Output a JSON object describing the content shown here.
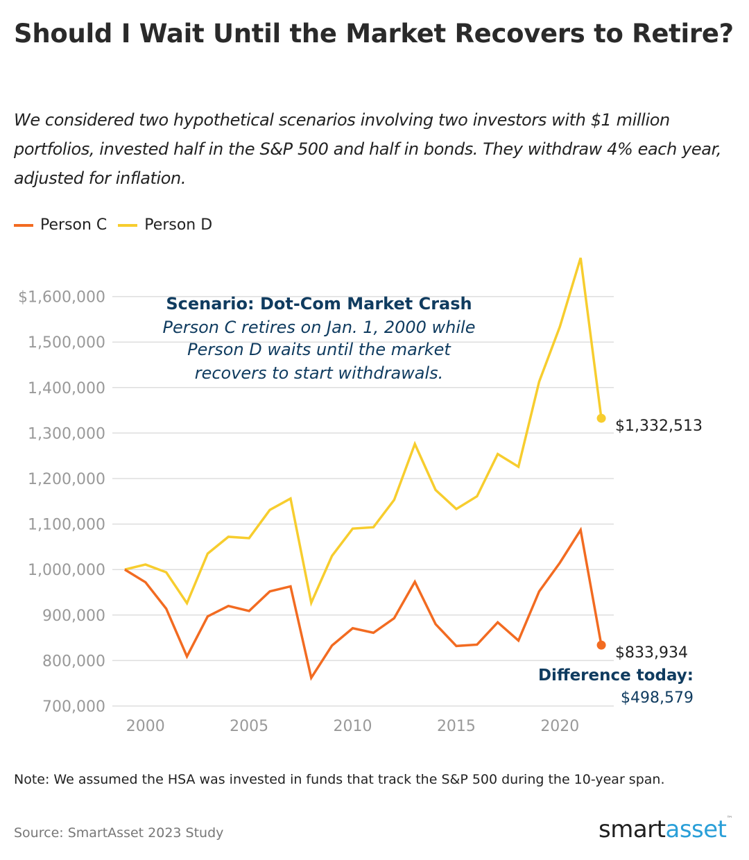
{
  "title": "Should I Wait Until the Market Recovers to Retire?",
  "subtitle": "We considered two hypothetical scenarios involving two investors with $1 million portfolios, invested half in the S&P 500 and half in bonds. They withdraw 4% each year, adjusted for inflation.",
  "colors": {
    "person_c": "#f26b21",
    "person_d": "#f7cd2e",
    "annotation": "#0f3b5f",
    "grid": "#dddddd",
    "axis_text": "#999999"
  },
  "chart_data": {
    "type": "line",
    "title": "",
    "xlabel": "",
    "ylabel": "",
    "x": [
      1999,
      2000,
      2001,
      2002,
      2003,
      2004,
      2005,
      2006,
      2007,
      2008,
      2009,
      2010,
      2011,
      2012,
      2013,
      2014,
      2015,
      2016,
      2017,
      2018,
      2019,
      2020,
      2021,
      2022
    ],
    "xticks": [
      2000,
      2005,
      2010,
      2015,
      2020
    ],
    "xlim": [
      1998.4,
      2022.6
    ],
    "ylim": [
      700000,
      1700000
    ],
    "yticks": [
      700000,
      800000,
      900000,
      1000000,
      1100000,
      1200000,
      1300000,
      1400000,
      1500000,
      1600000
    ],
    "ytick_labels": [
      "700,000",
      "800,000",
      "900,000",
      "1,000,000",
      "1,100,000",
      "1,200,000",
      "1,300,000",
      "1,400,000",
      "1,500,000",
      "$1,600,000"
    ],
    "grid": "horizontal",
    "legend_position": "top-left",
    "series": [
      {
        "name": "Person C",
        "key": "person_c",
        "values": [
          1000000,
          972000,
          914000,
          809000,
          897000,
          920000,
          909000,
          952000,
          963000,
          762000,
          833000,
          871000,
          861000,
          893000,
          973000,
          880000,
          832000,
          835000,
          884000,
          844000,
          952000,
          1015000,
          1087000,
          833934
        ],
        "end_label": "$833,934"
      },
      {
        "name": "Person D",
        "key": "person_d",
        "values": [
          1000000,
          1011000,
          994000,
          926000,
          1035000,
          1072000,
          1069000,
          1131000,
          1156000,
          927000,
          1030000,
          1090000,
          1093000,
          1153000,
          1276000,
          1175000,
          1133000,
          1161000,
          1254000,
          1226000,
          1413000,
          1534000,
          1685000,
          1332513
        ],
        "end_label": "$1,332,513"
      }
    ],
    "annotations": {
      "scenario_title": "Scenario: Dot-Com Market Crash",
      "scenario_lines": [
        "Person C retires on Jan. 1, 2000 while",
        "Person D waits until the market",
        "recovers to start withdrawals."
      ],
      "difference_label": "Difference today:",
      "difference_value": "$498,579"
    }
  },
  "note": "Note: We assumed the HSA was invested in funds that track the S&P 500 during the 10-year span.",
  "source": "Source: SmartAsset 2023 Study",
  "logo": {
    "part1": "smart",
    "part2": "asset",
    "tm": "™"
  }
}
